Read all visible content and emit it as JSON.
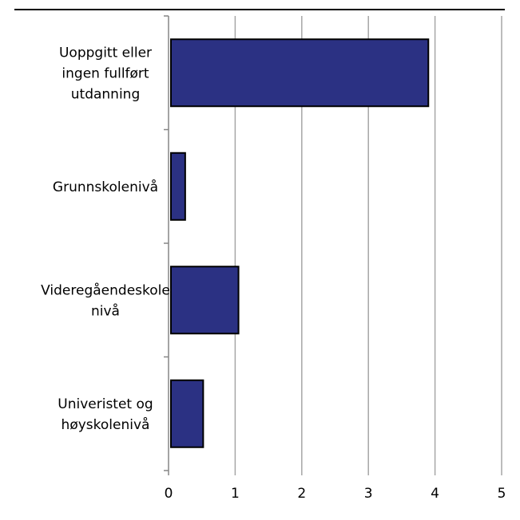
{
  "chart_data": {
    "type": "bar",
    "orientation": "horizontal",
    "title": "",
    "xlabel": "",
    "ylabel": "",
    "categories": [
      [
        "Uoppgitt eller",
        "ingen fullført",
        "utdanning"
      ],
      [
        "Grunnskolenivå"
      ],
      [
        "Videregåendeskole",
        "nivå"
      ],
      [
        "Univeristet og",
        "høyskolenivå"
      ]
    ],
    "values": [
      3.9,
      0.25,
      1.05,
      0.52
    ],
    "xlim": [
      0,
      5
    ],
    "xticks": [
      "0",
      "1",
      "2",
      "3",
      "4",
      "5"
    ],
    "grid": true,
    "legend": "none"
  },
  "colors": {
    "bar_fill": "#2b3183",
    "bar_stroke": "#000000",
    "grid": "#a6a6a6",
    "axis": "#868686",
    "text": "#000000",
    "top_rule": "#000000"
  }
}
